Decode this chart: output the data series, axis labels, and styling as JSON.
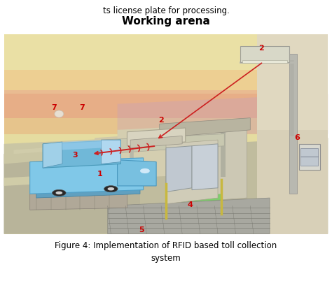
{
  "title_text": "Working arena",
  "caption": "Figure 4: Implementation of RFID based toll collection\nsystem",
  "partial_text": "ts license plate for processing.",
  "label_color": "#cc0000",
  "figure_bg": "#ffffff",
  "scene_bg": "#e8dfa0",
  "sky_top": "#e8e0a0",
  "sky_mid": "#f0c890",
  "sky_pink": "#e8a090",
  "sky_purple": "#c8a0c8",
  "road_color": "#b8b8a0",
  "ground_color": "#c8c0a0",
  "booth_wall": "#d0ccc0",
  "booth_glass": "#c8d0d8",
  "car_body": "#80c8e8",
  "car_dark": "#50a0c0",
  "green_zone": "#70d860",
  "mat_color": "#a8a8a0",
  "signal_color": "#cc2020"
}
